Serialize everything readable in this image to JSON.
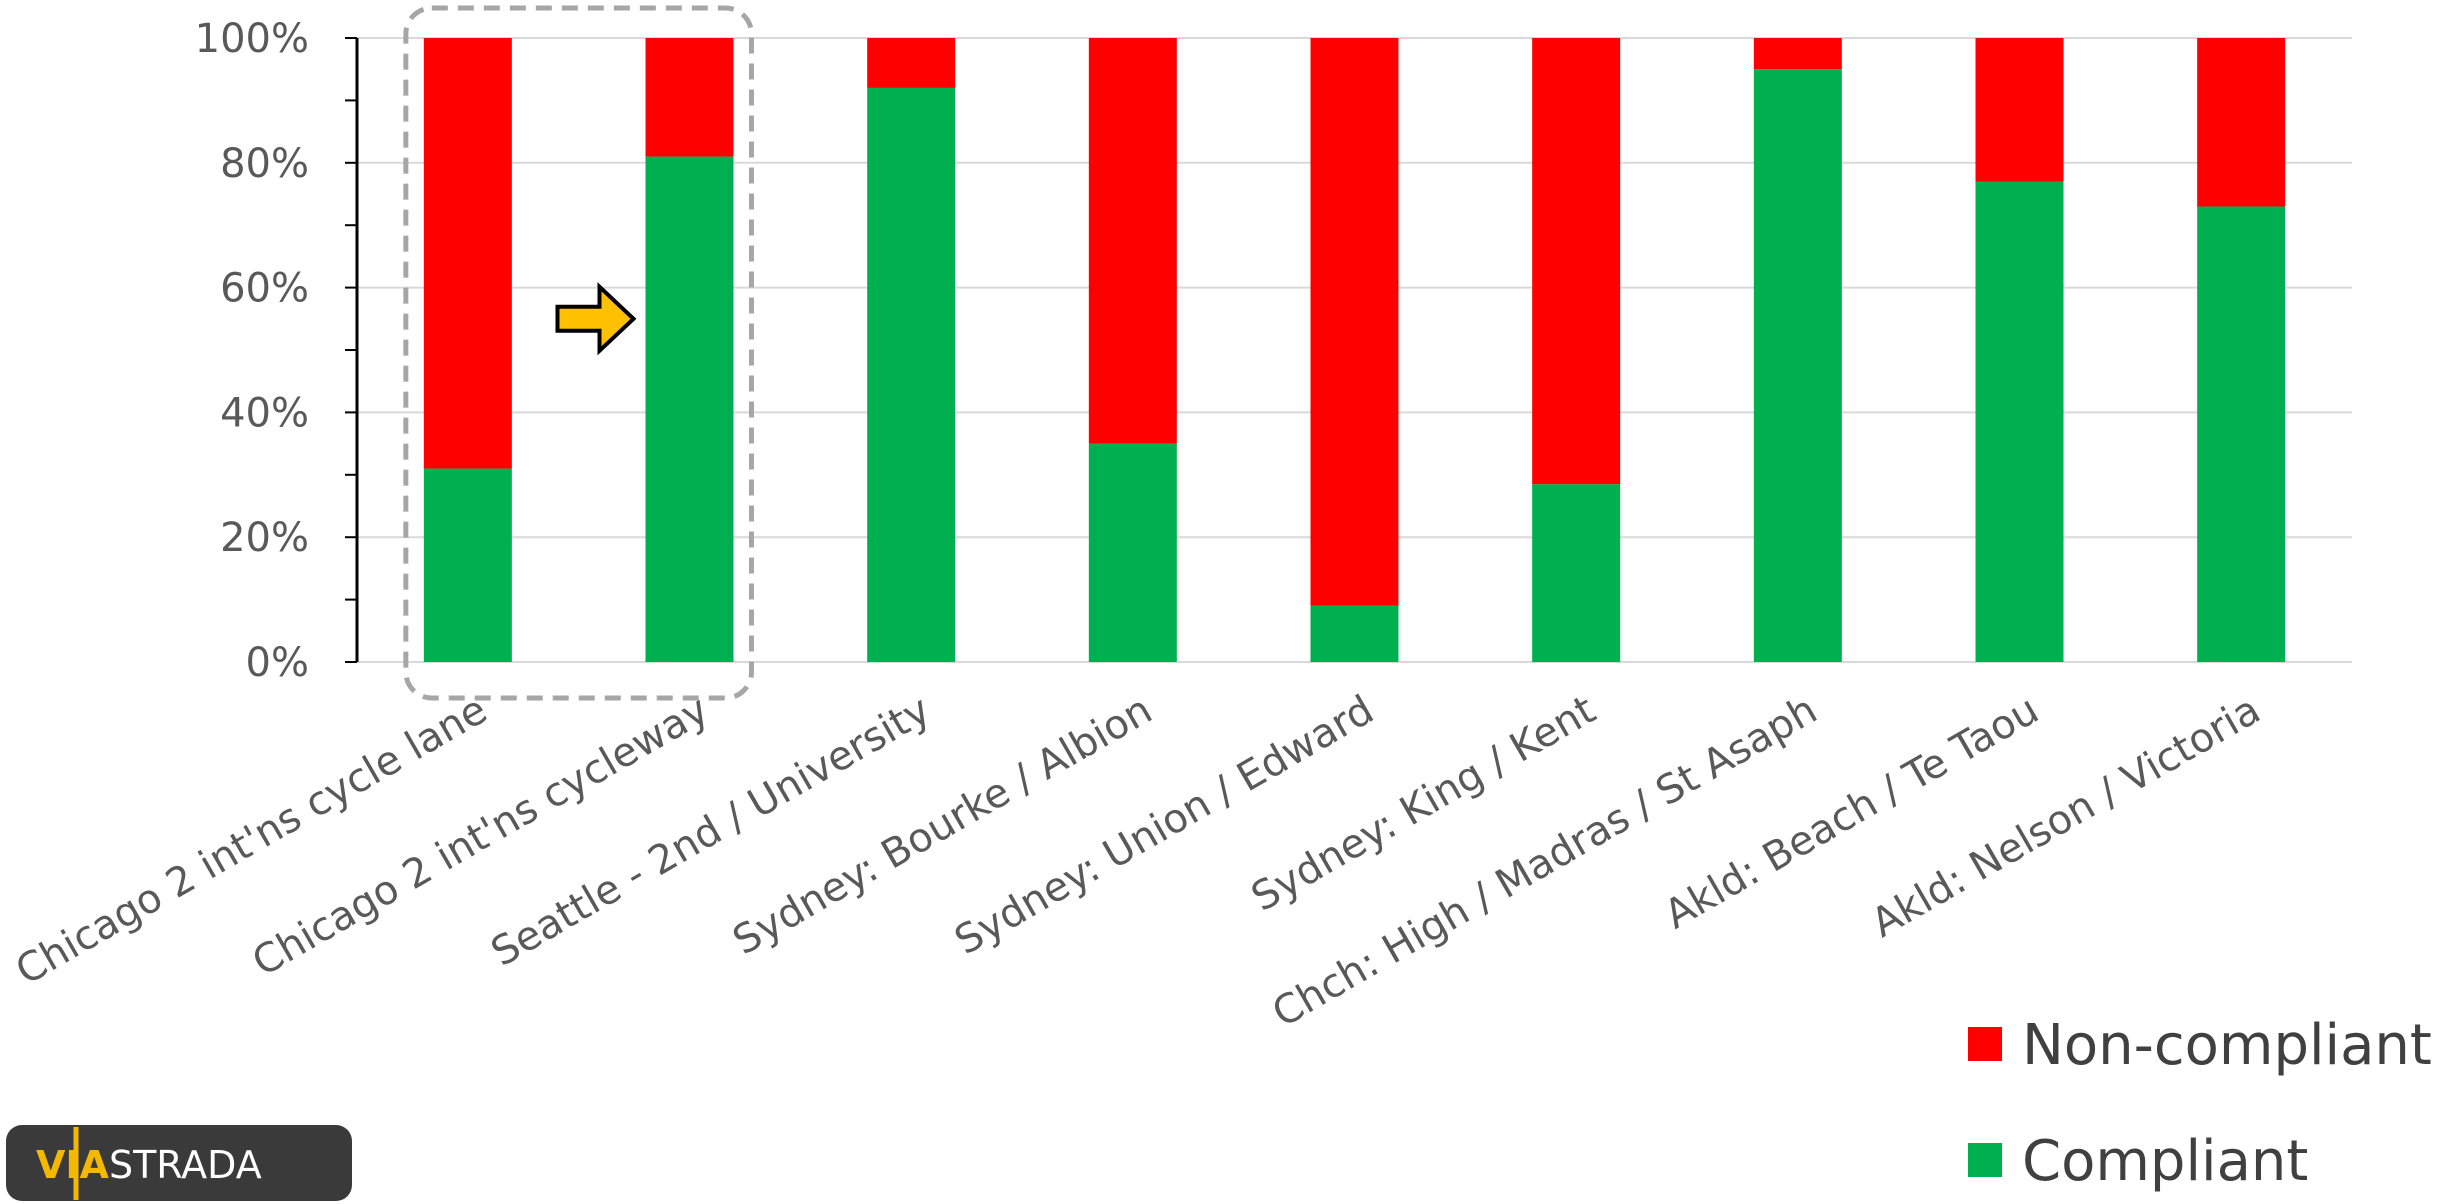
{
  "chart_data": {
    "type": "bar",
    "stacked": true,
    "percent": true,
    "categories": [
      "Chicago 2 int'ns cycle lane",
      "Chicago 2 int'ns cycleway",
      "Seattle - 2nd / University",
      "Sydney: Bourke / Albion",
      "Sydney: Union / Edward",
      "Sydney: King / Kent",
      "Chch: High / Madras / St Asaph",
      "Akld: Beach / Te Taou",
      "Akld: Nelson / Victoria"
    ],
    "series": [
      {
        "name": "Compliant",
        "color": "#00b050",
        "values": [
          31,
          81,
          92,
          35,
          9,
          28.5,
          95,
          77,
          73
        ]
      },
      {
        "name": "Non-compliant",
        "color": "#ff0000",
        "values": [
          69,
          19,
          8,
          65,
          91,
          71.5,
          5,
          23,
          27
        ]
      }
    ],
    "ylim": [
      0,
      100
    ],
    "yticks": [
      "0%",
      "20%",
      "40%",
      "60%",
      "80%",
      "100%"
    ],
    "grid": true,
    "legend_position": "bottom-right",
    "highlight": {
      "group": "dashed-box",
      "categories": [
        "Chicago 2 int'ns cycle lane",
        "Chicago 2 int'ns cycleway"
      ],
      "arrow_color": "#ffc000"
    }
  },
  "logo": {
    "text_accent": "VIA",
    "text_rest": "STRADA"
  }
}
